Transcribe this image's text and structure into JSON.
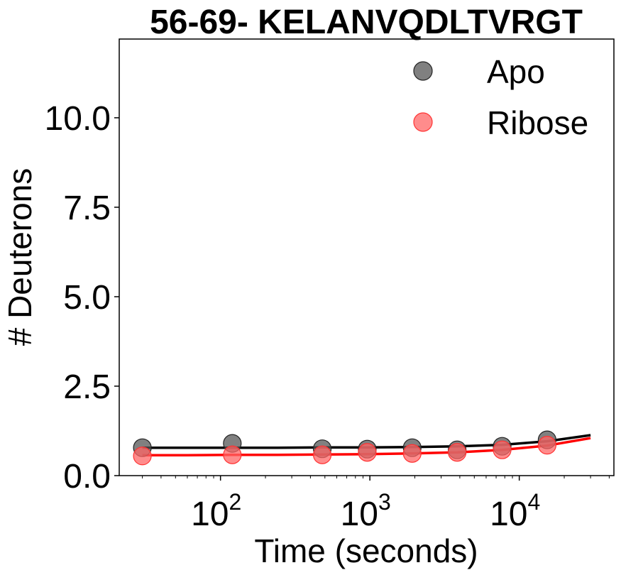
{
  "chart_data": {
    "type": "scatter",
    "title": "56-69- KELANVQDLTVRGT",
    "xlabel": "Time (seconds)",
    "ylabel": "# Deuterons",
    "xscale": "log",
    "xlim": [
      21,
      43000
    ],
    "ylim": [
      0,
      12.2
    ],
    "grid": false,
    "legend_position": "top-right",
    "x_ticks": [
      {
        "value": 100,
        "base": "10",
        "exp": "2"
      },
      {
        "value": 1000,
        "base": "10",
        "exp": "3"
      },
      {
        "value": 10000,
        "base": "10",
        "exp": "4"
      }
    ],
    "y_ticks": [
      "0.0",
      "2.5",
      "5.0",
      "7.5",
      "10.0"
    ],
    "series": [
      {
        "name": "Apo",
        "color": "#000000",
        "marker_color": "#555555",
        "x": [
          30,
          120,
          480,
          960,
          1920,
          3840,
          7680,
          15360
        ],
        "y": [
          0.78,
          0.9,
          0.75,
          0.74,
          0.78,
          0.72,
          0.82,
          1.0
        ],
        "fit_x": [
          30,
          60,
          120,
          240,
          480,
          960,
          1920,
          3840,
          7680,
          15360,
          30000
        ],
        "fit_y": [
          0.78,
          0.78,
          0.78,
          0.78,
          0.79,
          0.79,
          0.8,
          0.82,
          0.86,
          0.96,
          1.13
        ]
      },
      {
        "name": "Ribose",
        "color": "#ff0000",
        "marker_color": "#ff6666",
        "x": [
          30,
          120,
          480,
          960,
          1920,
          3840,
          7680,
          15360
        ],
        "y": [
          0.55,
          0.58,
          0.58,
          0.65,
          0.62,
          0.65,
          0.72,
          0.85
        ],
        "fit_x": [
          30,
          60,
          120,
          240,
          480,
          960,
          1920,
          3840,
          7680,
          15360,
          30000
        ],
        "fit_y": [
          0.57,
          0.57,
          0.58,
          0.58,
          0.59,
          0.6,
          0.62,
          0.65,
          0.72,
          0.84,
          1.05
        ]
      }
    ]
  }
}
